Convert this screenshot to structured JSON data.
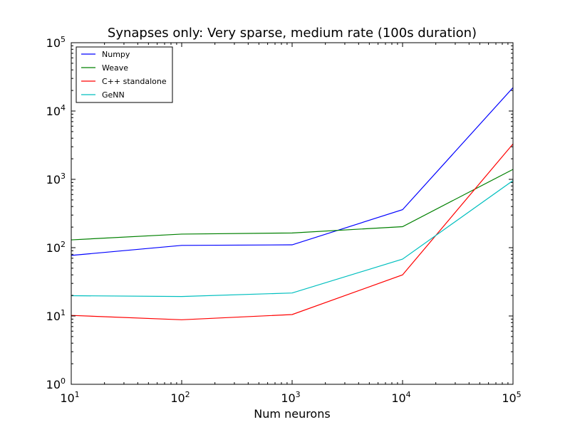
{
  "chart_data": {
    "type": "line",
    "title": "Synapses only: Very sparse, medium rate (100s duration)",
    "xlabel": "Num neurons",
    "ylabel": "",
    "xscale": "log",
    "yscale": "log",
    "xlim": [
      10,
      100000
    ],
    "ylim": [
      1,
      100000
    ],
    "x": [
      10,
      100,
      1000,
      10000,
      100000
    ],
    "xticks": [
      {
        "base": "10",
        "exp": "1",
        "value": 10
      },
      {
        "base": "10",
        "exp": "2",
        "value": 100
      },
      {
        "base": "10",
        "exp": "3",
        "value": 1000
      },
      {
        "base": "10",
        "exp": "4",
        "value": 10000
      },
      {
        "base": "10",
        "exp": "5",
        "value": 100000
      }
    ],
    "yticks": [
      {
        "base": "10",
        "exp": "0",
        "value": 1
      },
      {
        "base": "10",
        "exp": "1",
        "value": 10
      },
      {
        "base": "10",
        "exp": "2",
        "value": 100
      },
      {
        "base": "10",
        "exp": "3",
        "value": 1000
      },
      {
        "base": "10",
        "exp": "4",
        "value": 10000
      },
      {
        "base": "10",
        "exp": "5",
        "value": 100000
      }
    ],
    "grid": false,
    "legend_position": "top-left",
    "series": [
      {
        "name": "Numpy",
        "color": "#0000ff",
        "values": [
          77,
          108,
          110,
          360,
          22000
        ]
      },
      {
        "name": "Weave",
        "color": "#008000",
        "values": [
          130,
          158,
          164,
          203,
          1400
        ]
      },
      {
        "name": "C++ standalone",
        "color": "#ff0000",
        "values": [
          10.2,
          8.8,
          10.5,
          40,
          3300
        ]
      },
      {
        "name": "GeNN",
        "color": "#00bfbf",
        "values": [
          19.8,
          19.3,
          21.7,
          68,
          960
        ]
      }
    ]
  }
}
